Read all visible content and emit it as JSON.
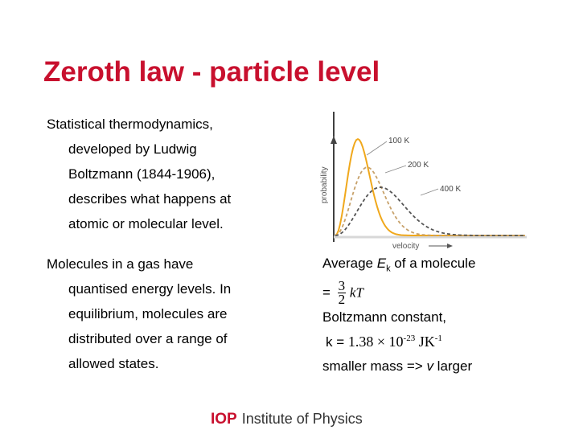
{
  "title": "Zeroth law - particle level",
  "para1": {
    "lines": [
      "Statistical thermodynamics,",
      "developed by Ludwig",
      "Boltzmann (1844-1906),",
      "describes what happens at",
      "atomic or molecular level."
    ]
  },
  "para2": {
    "lines": [
      "Molecules in a gas have",
      "quantised energy levels. In",
      "equilibrium, molecules are",
      "distributed over a range of",
      "allowed states."
    ]
  },
  "right": {
    "avg_prefix": "Average ",
    "avg_E": "E",
    "avg_k_sub": "k",
    "avg_suffix": " of a molecule",
    "equals": "=",
    "frac_num": "3",
    "frac_den": "2",
    "kT": "kT",
    "boltzmann_label": "Boltzmann constant,",
    "k_equals": "k =",
    "k_value": "1.38 × 10",
    "k_exp": "-23",
    "k_unit": " JK",
    "k_unit_exp": "-1",
    "mass_line_prefix": "smaller mass => ",
    "mass_v": "v",
    "mass_line_suffix": " larger"
  },
  "chart_data": {
    "type": "line",
    "xlabel": "velocity",
    "ylabel": "probability",
    "series": [
      {
        "name": "100 K",
        "color": "#f0a81c",
        "style": "solid"
      },
      {
        "name": "200 K",
        "color": "#c7a16a",
        "style": "dashed"
      },
      {
        "name": "400 K",
        "color": "#555555",
        "style": "dashed"
      }
    ]
  },
  "footer": {
    "logo": "IOP",
    "institute": "Institute of Physics"
  }
}
